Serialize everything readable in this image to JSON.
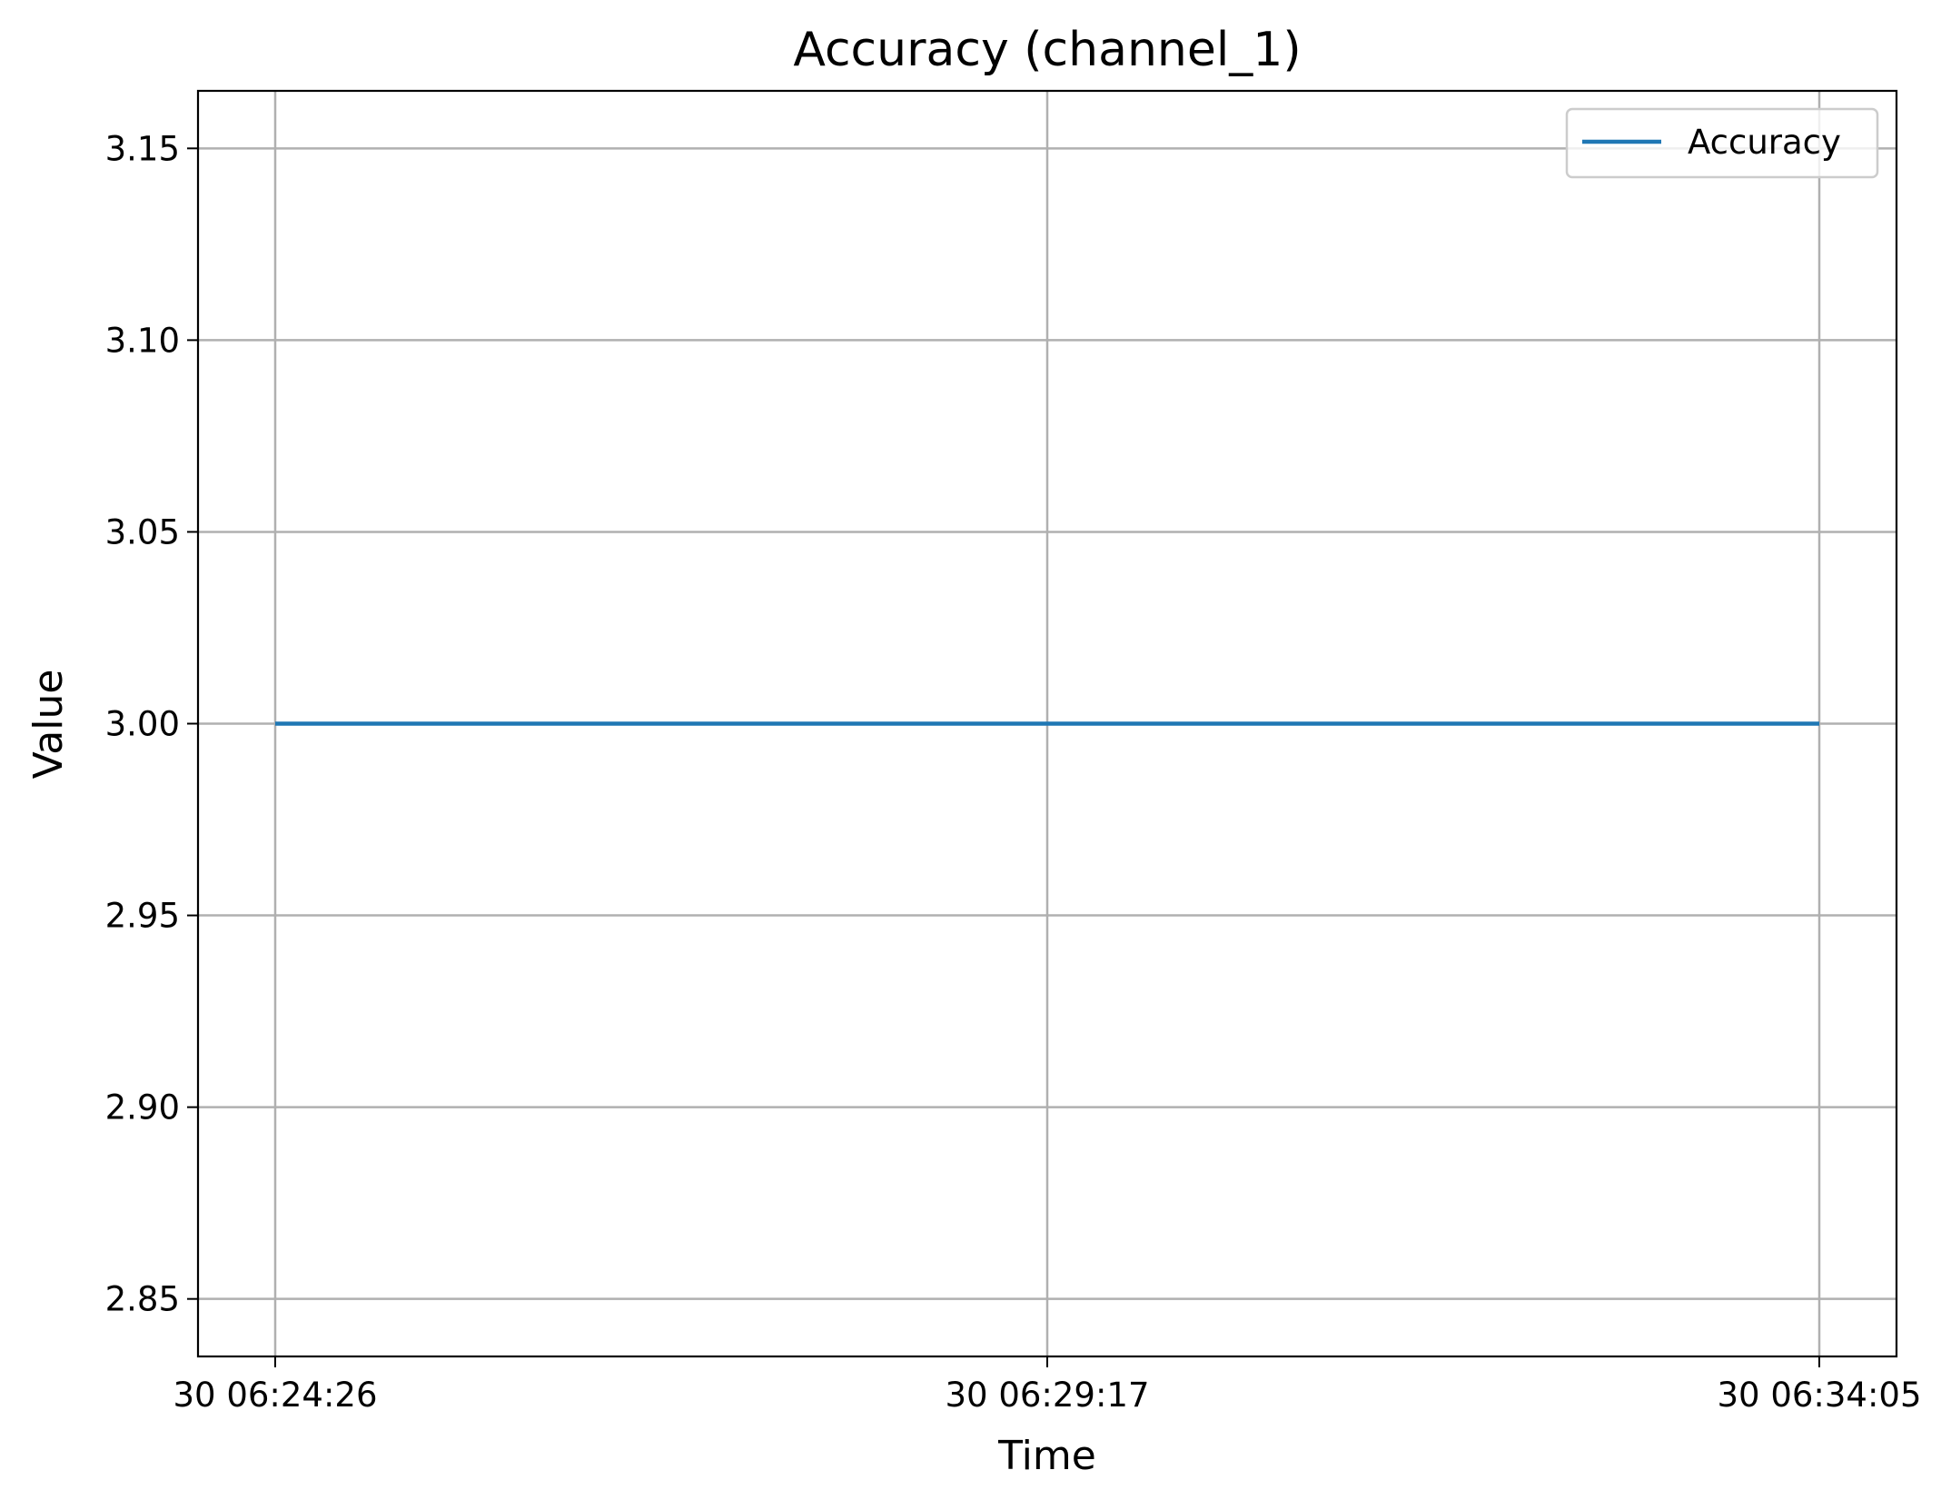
{
  "chart_data": {
    "type": "line",
    "title": "Accuracy (channel_1)",
    "xlabel": "Time",
    "ylabel": "Value",
    "x_ticks": [
      "30 06:24:26",
      "30 06:29:17",
      "30 06:34:05"
    ],
    "y_ticks": [
      "2.85",
      "2.90",
      "2.95",
      "3.00",
      "3.05",
      "3.10",
      "3.15"
    ],
    "ylim": [
      2.835,
      3.165
    ],
    "grid": true,
    "legend_position": "top-right",
    "series": [
      {
        "name": "Accuracy",
        "color": "#1f77b4",
        "x": [
          "30 06:24:26",
          "30 06:29:17",
          "30 06:34:05"
        ],
        "y": [
          3.0,
          3.0,
          3.0
        ]
      }
    ]
  }
}
